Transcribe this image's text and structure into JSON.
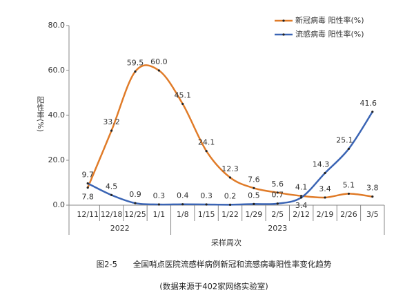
{
  "chart_data": {
    "type": "line",
    "categories": [
      "12/11",
      "12/18",
      "12/25",
      "1/1",
      "1/8",
      "1/15",
      "1/22",
      "1/29",
      "2/5",
      "2/12",
      "2/19",
      "2/26",
      "3/5"
    ],
    "x_groups": [
      {
        "label": "2022",
        "from": "12/11",
        "to": "1/1"
      },
      {
        "label": "2023",
        "from": "1/8",
        "to": "3/5"
      }
    ],
    "series": [
      {
        "name": "新冠病毒 阳性率(%)",
        "color": "#e07b28",
        "values": [
          7.8,
          33.2,
          59.5,
          60.0,
          45.1,
          24.1,
          12.3,
          7.6,
          5.6,
          4.1,
          3.4,
          5.1,
          3.8
        ],
        "value_labels": [
          "7.8",
          "33.2",
          "59.5",
          "60.0",
          "45.1",
          "24.1",
          "12.3",
          "7.6",
          "5.6",
          "4.1",
          "3.4",
          "5.1",
          "3.8"
        ]
      },
      {
        "name": "流感病毒 阳性率(%)",
        "color": "#3a64b4",
        "values": [
          9.7,
          4.5,
          0.9,
          0.3,
          0.4,
          0.3,
          0.2,
          0.5,
          0.7,
          3.4,
          14.3,
          25.1,
          41.6
        ],
        "value_labels": [
          "9.7",
          "4.5",
          "0.9",
          "0.3",
          "0.4",
          "0.3",
          "0.2",
          "0.5",
          "0.7",
          "3.4",
          "14.3",
          "25.1",
          "41.6"
        ]
      }
    ],
    "ylim": [
      0,
      80
    ],
    "yticks": [
      {
        "value": 0,
        "label": "0.0"
      },
      {
        "value": 20,
        "label": "20.0"
      },
      {
        "value": 40,
        "label": "40.0"
      },
      {
        "value": 60,
        "label": "60.0"
      },
      {
        "value": 80,
        "label": "80.0"
      }
    ],
    "y_label": "阳性率(%)",
    "x_label": "采样周次",
    "caption": "图2-5　　全国哨点医院流感样病例新冠和流感病毒阳性率变化趋势",
    "source_note": "(数据来源于402家网络实验室)"
  }
}
